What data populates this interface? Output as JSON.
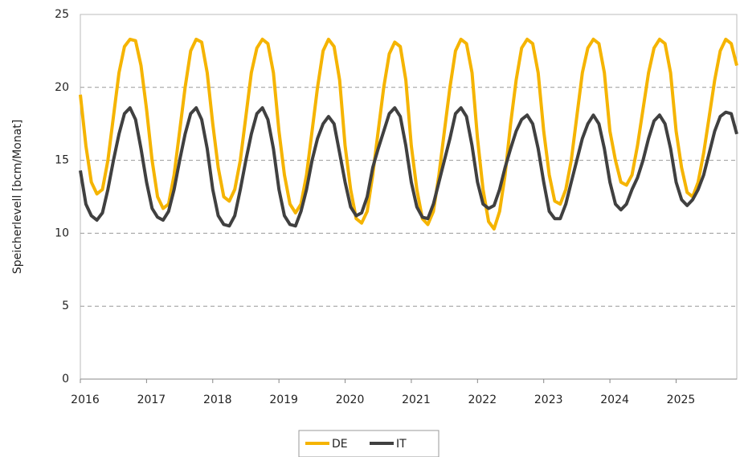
{
  "chart_data": {
    "type": "line",
    "y_label": "Speicherlevell [bcm/Monat]",
    "categories": [
      "2016",
      null,
      null,
      null,
      null,
      null,
      null,
      null,
      null,
      null,
      null,
      null,
      "2017",
      null,
      null,
      null,
      null,
      null,
      null,
      null,
      null,
      null,
      null,
      null,
      "2018",
      null,
      null,
      null,
      null,
      null,
      null,
      null,
      null,
      null,
      null,
      null,
      "2019",
      null,
      null,
      null,
      null,
      null,
      null,
      null,
      null,
      null,
      null,
      null,
      "2020",
      null,
      null,
      null,
      null,
      null,
      null,
      null,
      null,
      null,
      null,
      null,
      "2021",
      null,
      null,
      null,
      null,
      null,
      null,
      null,
      null,
      null,
      null,
      null,
      "2022",
      null,
      null,
      null,
      null,
      null,
      null,
      null,
      null,
      null,
      null,
      null,
      "2023",
      null,
      null,
      null,
      null,
      null,
      null,
      null,
      null,
      null,
      null,
      null,
      "2024",
      null,
      null,
      null,
      null,
      null,
      null,
      null,
      null,
      null,
      null,
      null,
      "2025",
      null,
      null,
      null,
      null,
      null,
      null,
      null,
      null,
      null,
      null,
      null
    ],
    "series": [
      {
        "name": "DE",
        "color": "#f5b400",
        "values": [
          19.5,
          16,
          13.5,
          12.7,
          13,
          15,
          18,
          21,
          22.8,
          23.3,
          23.2,
          21.5,
          18.5,
          15,
          12.5,
          11.7,
          12,
          14,
          17,
          20,
          22.5,
          23.3,
          23.1,
          21,
          17.5,
          14.5,
          12.5,
          12.2,
          13,
          15,
          18,
          21,
          22.7,
          23.3,
          23,
          21,
          17,
          14,
          12,
          11.4,
          12,
          14,
          17,
          20,
          22.5,
          23.3,
          22.8,
          20.5,
          16,
          13,
          11,
          10.7,
          11.5,
          14,
          17,
          20,
          22.3,
          23.1,
          22.8,
          20.5,
          16,
          13,
          11,
          10.6,
          11.5,
          14,
          17,
          20,
          22.5,
          23.3,
          23,
          21,
          16.5,
          13,
          10.8,
          10.3,
          11.5,
          14,
          17.5,
          20.5,
          22.7,
          23.3,
          23,
          21,
          17,
          14,
          12.2,
          12,
          13,
          15,
          18,
          21,
          22.7,
          23.3,
          23,
          21,
          17,
          15,
          13.5,
          13.3,
          14,
          16,
          18.5,
          21,
          22.7,
          23.3,
          23,
          21,
          17,
          14.5,
          12.8,
          12.5,
          13.5,
          15.5,
          18,
          20.5,
          22.5,
          23.3,
          23,
          21.5
        ]
      },
      {
        "name": "IT",
        "color": "#404040",
        "values": [
          14.3,
          12,
          11.2,
          10.9,
          11.4,
          13,
          15,
          16.8,
          18.2,
          18.6,
          17.8,
          15.8,
          13.5,
          11.7,
          11.1,
          10.9,
          11.5,
          13,
          15,
          16.8,
          18.2,
          18.6,
          17.8,
          15.8,
          13,
          11.2,
          10.6,
          10.5,
          11.2,
          13,
          15,
          16.8,
          18.2,
          18.6,
          17.8,
          15.8,
          13,
          11.2,
          10.6,
          10.5,
          11.5,
          13,
          15,
          16.5,
          17.5,
          18,
          17.5,
          15.5,
          13.5,
          11.8,
          11.2,
          11.4,
          12.5,
          14.5,
          15.8,
          17,
          18.2,
          18.6,
          18,
          16,
          13.5,
          11.8,
          11.1,
          11,
          12,
          13.5,
          15,
          16.5,
          18.2,
          18.6,
          18,
          16,
          13.5,
          12,
          11.7,
          11.9,
          13,
          14.5,
          15.8,
          17,
          17.8,
          18.1,
          17.5,
          15.8,
          13.5,
          11.5,
          11,
          11,
          12,
          13.5,
          15,
          16.5,
          17.5,
          18.1,
          17.5,
          15.8,
          13.5,
          12,
          11.6,
          12,
          13,
          13.8,
          15,
          16.5,
          17.7,
          18.1,
          17.5,
          15.8,
          13.5,
          12.3,
          11.9,
          12.3,
          13,
          14,
          15.5,
          17,
          18,
          18.3,
          18.2,
          16.8
        ]
      }
    ],
    "ylim": [
      0,
      25
    ],
    "yticks": [
      0,
      5,
      10,
      15,
      20,
      25
    ],
    "grid": true
  }
}
